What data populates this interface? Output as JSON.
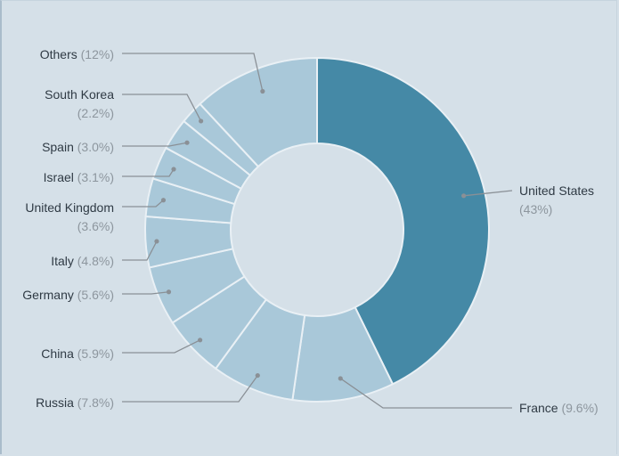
{
  "chart_data": {
    "type": "pie",
    "variant": "donut",
    "colors": {
      "highlight": "#4589a6",
      "slice": "#a9c8d9",
      "slice_border": "#e9f0f5",
      "leader": "#8a9096"
    },
    "slices": [
      {
        "name": "United States",
        "value": 43,
        "pct_label": "(43%)",
        "highlight": true
      },
      {
        "name": "France",
        "value": 9.6,
        "pct_label": "(9.6%)"
      },
      {
        "name": "Russia",
        "value": 7.8,
        "pct_label": "(7.8%)"
      },
      {
        "name": "China",
        "value": 5.9,
        "pct_label": "(5.9%)"
      },
      {
        "name": "Germany",
        "value": 5.6,
        "pct_label": "(5.6%)"
      },
      {
        "name": "Italy",
        "value": 4.8,
        "pct_label": "(4.8%)"
      },
      {
        "name": "United Kingdom",
        "value": 3.6,
        "pct_label": "(3.6%)"
      },
      {
        "name": "Israel",
        "value": 3.1,
        "pct_label": "(3.1%)"
      },
      {
        "name": "Spain",
        "value": 3.0,
        "pct_label": "(3.0%)"
      },
      {
        "name": "South Korea",
        "value": 2.2,
        "pct_label": "(2.2%)"
      },
      {
        "name": "Others",
        "value": 12,
        "pct_label": "(12%)"
      }
    ]
  }
}
